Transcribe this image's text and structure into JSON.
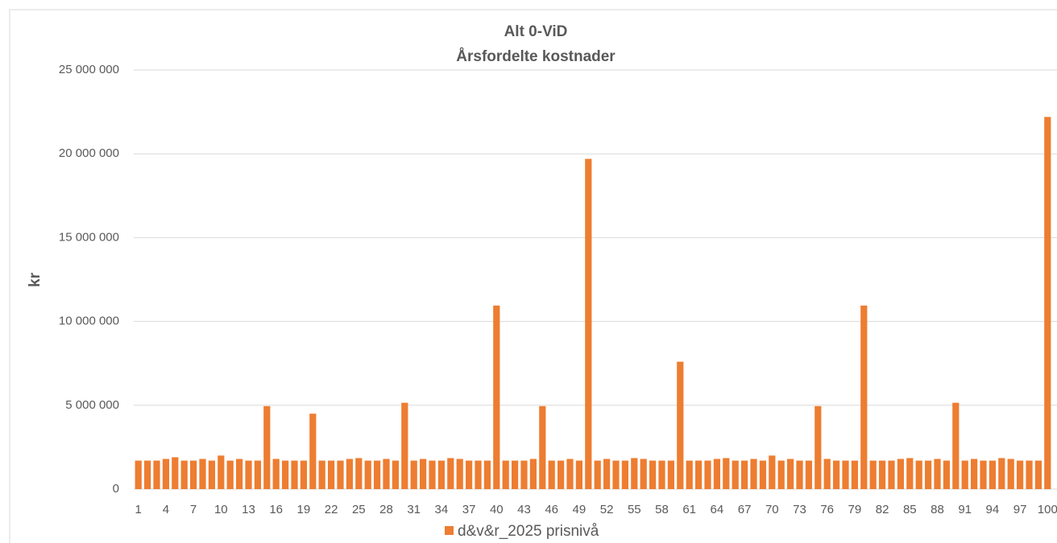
{
  "chart_data": {
    "type": "bar",
    "title": "Alt 0-ViD",
    "subtitle": "Årsfordelte kostnader",
    "y_label": "kr",
    "categories": [
      "1",
      null,
      null,
      "4",
      null,
      null,
      "7",
      null,
      null,
      "10",
      null,
      null,
      "13",
      null,
      null,
      "16",
      null,
      null,
      "19",
      null,
      null,
      "22",
      null,
      null,
      "25",
      null,
      null,
      "28",
      null,
      null,
      "31",
      null,
      null,
      "34",
      null,
      null,
      "37",
      null,
      null,
      "40",
      null,
      null,
      "43",
      null,
      null,
      "46",
      null,
      null,
      "49",
      null,
      null,
      "52",
      null,
      null,
      "55",
      null,
      null,
      "58",
      null,
      null,
      "61",
      null,
      null,
      "64",
      null,
      null,
      "67",
      null,
      null,
      "70",
      null,
      null,
      "73",
      null,
      null,
      "76",
      null,
      null,
      "79",
      null,
      null,
      "82",
      null,
      null,
      "85",
      null,
      null,
      "88",
      null,
      null,
      "91",
      null,
      null,
      "94",
      null,
      null,
      "97",
      null,
      null,
      "100"
    ],
    "series": [
      {
        "name": "d&v&r_2025 prisnivå",
        "color": "#ed7d31",
        "values": [
          1700000,
          1700000,
          1700000,
          1800000,
          1900000,
          1700000,
          1700000,
          1800000,
          1700000,
          2000000,
          1700000,
          1800000,
          1700000,
          1700000,
          4950000,
          1800000,
          1700000,
          1700000,
          1700000,
          4500000,
          1700000,
          1700000,
          1700000,
          1800000,
          1850000,
          1700000,
          1700000,
          1800000,
          1700000,
          5150000,
          1700000,
          1800000,
          1700000,
          1700000,
          1850000,
          1800000,
          1700000,
          1700000,
          1700000,
          10950000,
          1700000,
          1700000,
          1700000,
          1800000,
          4950000,
          1700000,
          1700000,
          1800000,
          1700000,
          19700000,
          1700000,
          1800000,
          1700000,
          1700000,
          1850000,
          1800000,
          1700000,
          1700000,
          1700000,
          7600000,
          1700000,
          1700000,
          1700000,
          1800000,
          1850000,
          1700000,
          1700000,
          1800000,
          1700000,
          2000000,
          1700000,
          1800000,
          1700000,
          1700000,
          4950000,
          1800000,
          1700000,
          1700000,
          1700000,
          10950000,
          1700000,
          1700000,
          1700000,
          1800000,
          1850000,
          1700000,
          1700000,
          1800000,
          1700000,
          5150000,
          1700000,
          1800000,
          1700000,
          1700000,
          1850000,
          1800000,
          1700000,
          1700000,
          1700000,
          22200000
        ]
      }
    ],
    "ylim": [
      0,
      25000000
    ],
    "yticks": [
      0,
      {
        "value": 5000000,
        "label": "5 000 000"
      },
      {
        "value": 10000000,
        "label": "10 000 000"
      },
      {
        "value": 15000000,
        "label": "15 000 000"
      },
      {
        "value": 20000000,
        "label": "20 000 000"
      },
      {
        "value": 25000000,
        "label": "25 000 000"
      }
    ],
    "grid": true,
    "legend": "bottom"
  }
}
